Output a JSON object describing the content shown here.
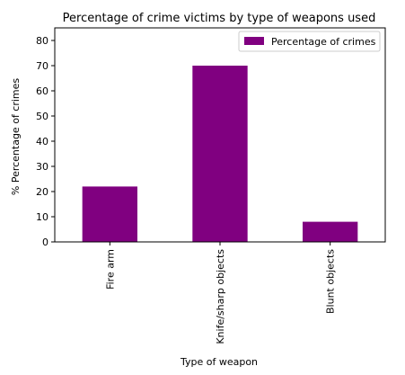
{
  "chart_data": {
    "type": "bar",
    "title": "Percentage of crime victims by type of weapons used",
    "xlabel": "Type of weapon",
    "ylabel": "% Percentage of crimes",
    "categories": [
      "Fire arm",
      "Knife/sharp objects",
      "Blunt objects"
    ],
    "series": [
      {
        "name": "Percentage of crimes",
        "values": [
          22,
          70,
          8
        ]
      }
    ],
    "ylim": [
      0,
      85
    ],
    "yticks": [
      0,
      10,
      20,
      30,
      40,
      50,
      60,
      70,
      80
    ],
    "grid": false,
    "legend_position": "top-right",
    "bar_color": "#800080"
  }
}
